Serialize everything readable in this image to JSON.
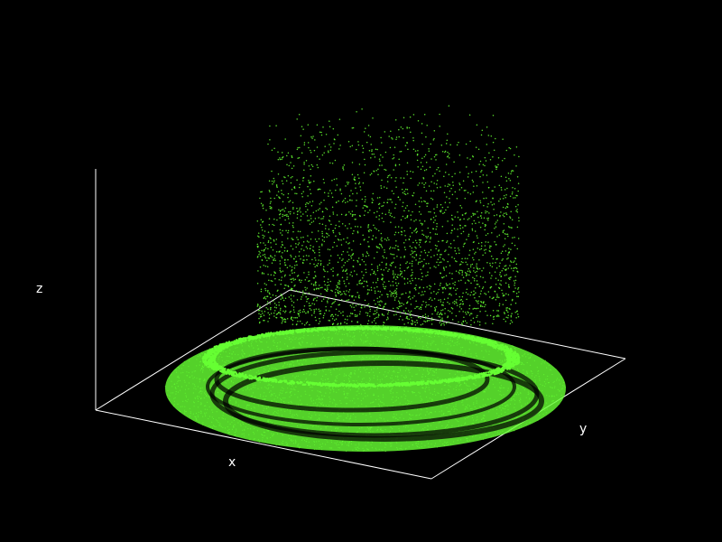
{
  "chart_data": {
    "type": "scatter",
    "title": "",
    "xlabel": "x",
    "ylabel": "y",
    "zlabel": "z",
    "background_color": "#000000",
    "axis_color": "#ffffff",
    "point_color": "#66ff33",
    "grid": false,
    "legend": "none",
    "description_of_data": [
      {
        "part": "base disk",
        "shape": "filled ellipse at z = 0",
        "density": "dense"
      },
      {
        "part": "rim",
        "shape": "bright raised ring near the disk edge",
        "density": "dense"
      },
      {
        "part": "ridges",
        "shape": "concentric dark ribbed bands inside the rim",
        "density": "medium"
      },
      {
        "part": "cloud",
        "shape": "sparse vertical scatter of points above the disk",
        "density": "sparse"
      }
    ]
  }
}
